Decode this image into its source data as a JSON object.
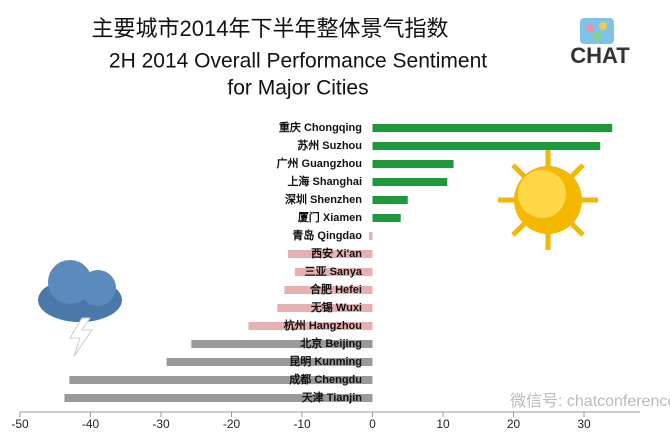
{
  "chart_data": {
    "type": "barh",
    "title": "主要城市2014年下半年整体景气指数",
    "subtitle": [
      "2H 2014 Overall Performance Sentiment",
      "for Major Cities"
    ],
    "logo": "CHAT",
    "watermark": "微信号: chatconference",
    "categories": [
      "重庆 Chongqing",
      "苏州 Suzhou",
      "广州 Guangzhou",
      "上海 Shanghai",
      "深圳 Shenzhen",
      "厦门 Xiamen",
      "青岛 Qingdao",
      "西安 Xi'an",
      "三亚 Sanya",
      "合肥 Hefei",
      "无锡 Wuxi",
      "杭州 Hangzhou",
      "北京 Beijing",
      "昆明 Kunming",
      "成都 Chengdu",
      "天津 Tianjin"
    ],
    "values": [
      34,
      32.3,
      11.5,
      10.6,
      5,
      4,
      -0.5,
      -12,
      -11,
      -12.5,
      -13.5,
      -17.6,
      -25.7,
      -29.2,
      -43,
      -43.7
    ],
    "colors": [
      "#1f9a3a",
      "#1f9a3a",
      "#1f9a3a",
      "#1f9a3a",
      "#1f9a3a",
      "#1f9a3a",
      "#e6b0b0",
      "#e6b0b0",
      "#e6b0b0",
      "#e6b0b0",
      "#e6b0b0",
      "#e6b0b0",
      "#9a9a9a",
      "#9a9a9a",
      "#9a9a9a",
      "#9a9a9a"
    ],
    "xlim": [
      -50,
      40
    ],
    "xticks": [
      -50,
      -40,
      -30,
      -20,
      -10,
      0,
      10,
      20,
      30
    ]
  }
}
